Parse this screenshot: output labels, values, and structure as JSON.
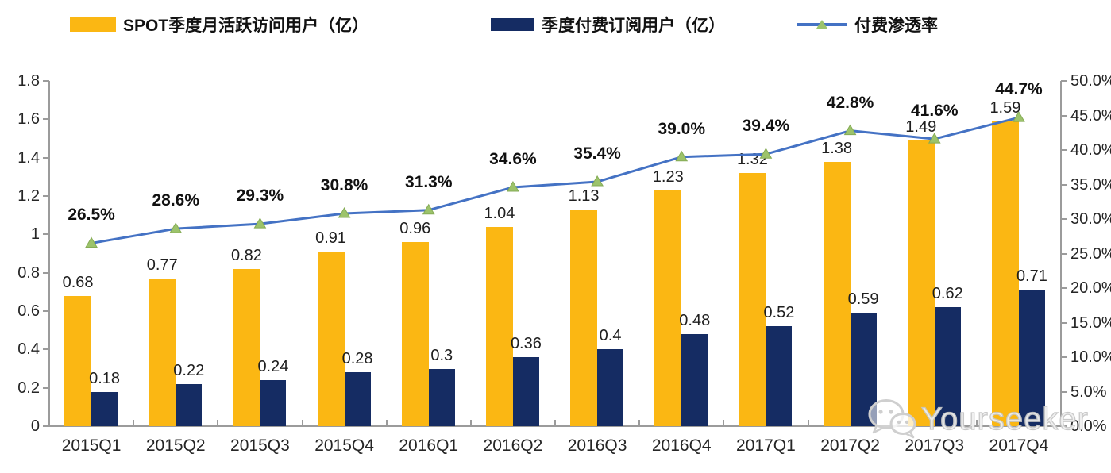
{
  "legend": {
    "items": [
      {
        "label": "SPOT季度月活跃访问用户（亿）",
        "type": "bar",
        "color": "#FBB713"
      },
      {
        "label": "季度付费订阅用户（亿）",
        "type": "bar",
        "color": "#152C63"
      },
      {
        "label": "付费渗透率",
        "type": "line",
        "color": "#4472C4",
        "marker_color": "#9CC36B"
      }
    ]
  },
  "watermark": {
    "text": "Yourseeker",
    "icon": "wechat-icon"
  },
  "colors": {
    "mau_bar": "#FBB713",
    "subs_bar": "#152C63",
    "line": "#4472C4",
    "marker": "#9CC36B",
    "axis": "#9B9B9B"
  },
  "chart_data": {
    "type": "bar",
    "subtype": "combo-bar-line-dual-axis",
    "categories": [
      "2015Q1",
      "2015Q2",
      "2015Q3",
      "2015Q4",
      "2016Q1",
      "2016Q2",
      "2016Q3",
      "2016Q4",
      "2017Q1",
      "2017Q2",
      "2017Q3",
      "2017Q4"
    ],
    "series": [
      {
        "name": "SPOT季度月活跃访问用户（亿）",
        "type": "bar",
        "axis": "left",
        "color": "#FBB713",
        "values": [
          0.68,
          0.77,
          0.82,
          0.91,
          0.96,
          1.04,
          1.13,
          1.23,
          1.32,
          1.38,
          1.49,
          1.59
        ],
        "labels": [
          "0.68",
          "0.77",
          "0.82",
          "0.91",
          "0.96",
          "1.04",
          "1.13",
          "1.23",
          "1.32",
          "1.38",
          "1.49",
          "1.59"
        ]
      },
      {
        "name": "季度付费订阅用户（亿）",
        "type": "bar",
        "axis": "left",
        "color": "#152C63",
        "values": [
          0.18,
          0.22,
          0.24,
          0.28,
          0.3,
          0.36,
          0.4,
          0.48,
          0.52,
          0.59,
          0.62,
          0.71
        ],
        "labels": [
          "0.18",
          "0.22",
          "0.24",
          "0.28",
          "0.3",
          "0.36",
          "0.4",
          "0.48",
          "0.52",
          "0.59",
          "0.62",
          "0.71"
        ]
      },
      {
        "name": "付费渗透率",
        "type": "line",
        "axis": "right",
        "color": "#4472C4",
        "marker": "triangle",
        "marker_color": "#9CC36B",
        "values": [
          26.5,
          28.6,
          29.3,
          30.8,
          31.3,
          34.6,
          35.4,
          39.0,
          39.4,
          42.8,
          41.6,
          44.7
        ],
        "labels": [
          "26.5%",
          "28.6%",
          "29.3%",
          "30.8%",
          "31.3%",
          "34.6%",
          "35.4%",
          "39.0%",
          "39.4%",
          "42.8%",
          "41.6%",
          "44.7%"
        ]
      }
    ],
    "left_axis": {
      "min": 0,
      "max": 1.8,
      "tick_step": 0.2,
      "tick_labels": [
        "0",
        "0.2",
        "0.4",
        "0.6",
        "0.8",
        "1",
        "1.2",
        "1.4",
        "1.6",
        "1.8"
      ]
    },
    "right_axis": {
      "min": 0,
      "max": 50,
      "tick_step": 5,
      "tick_labels": [
        "0.0%",
        "5.0%",
        "10.0%",
        "15.0%",
        "20.0%",
        "25.0%",
        "30.0%",
        "35.0%",
        "40.0%",
        "45.0%",
        "50.0%"
      ]
    },
    "grid": false,
    "legend_position": "top",
    "title": "",
    "xlabel": "",
    "ylabel_left": "",
    "ylabel_right": ""
  }
}
